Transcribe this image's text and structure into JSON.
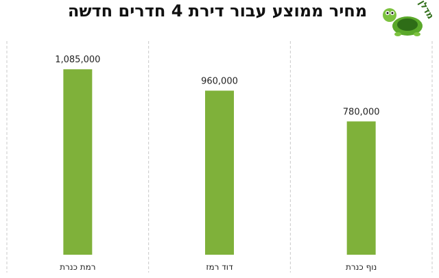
{
  "title": "מחיר ממוצע עבור דירת 4 חדרים חדשה",
  "logo_text": "מדלן",
  "colors": {
    "bar": "#7fb13a",
    "grid": "#c8c8c8",
    "logo_green": "#5aa82a",
    "logo_dark": "#2e6d17"
  },
  "chart_data": {
    "type": "bar",
    "title": "מחיר ממוצע עבור דירת 4 חדרים חדשה",
    "categories": [
      "רמת כנרת",
      "דוד רמז",
      "נוף כנרת"
    ],
    "values": [
      1085000,
      960000,
      780000
    ],
    "value_labels": [
      "1,085,000",
      "960,000",
      "780,000"
    ],
    "xlabel": "",
    "ylabel": "",
    "ylim": [
      0,
      1250000
    ],
    "grid": "vertical-separators",
    "legend": "none"
  }
}
